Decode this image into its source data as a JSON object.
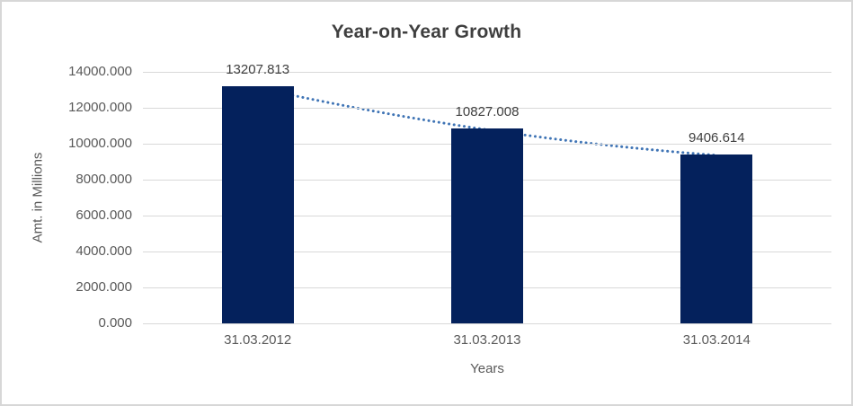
{
  "chart_data": {
    "type": "bar",
    "title": "Year-on-Year Growth",
    "xlabel": "Years",
    "ylabel": "Amt. in Millions",
    "categories": [
      "31.03.2012",
      "31.03.2013",
      "31.03.2014"
    ],
    "values": [
      13207.813,
      10827.008,
      9406.614
    ],
    "data_labels": [
      "13207.813",
      "10827.008",
      "9406.614"
    ],
    "y_ticks": [
      {
        "value": 0,
        "label": "0.000"
      },
      {
        "value": 2000,
        "label": "2000.000"
      },
      {
        "value": 4000,
        "label": "4000.000"
      },
      {
        "value": 6000,
        "label": "6000.000"
      },
      {
        "value": 8000,
        "label": "8000.000"
      },
      {
        "value": 10000,
        "label": "10000.000"
      },
      {
        "value": 12000,
        "label": "12000.000"
      },
      {
        "value": 14000,
        "label": "14000.000"
      }
    ],
    "ylim": [
      0,
      14000
    ],
    "grid": true,
    "legend": "none",
    "trendline": {
      "style": "dotted",
      "points_follow": "bar-tops"
    },
    "colors": {
      "bar": "#04215c",
      "trendline": "#3f74b5",
      "gridline": "#d9d9d9",
      "title_text": "#3f3f3f",
      "axis_text": "#595959",
      "data_label_text": "#404040",
      "background": "#ffffff",
      "frame_border": "#d7d7d7"
    }
  }
}
